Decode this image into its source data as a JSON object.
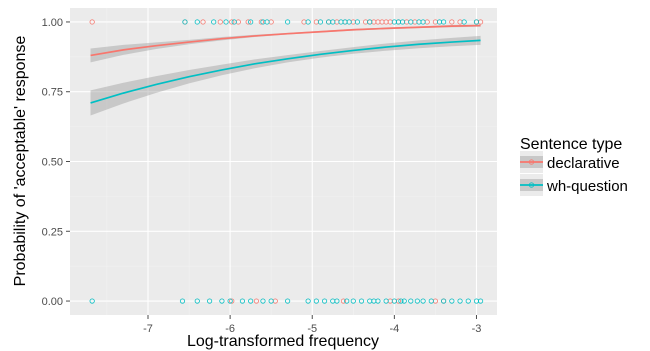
{
  "chart_data": {
    "type": "scatter",
    "xlabel": "Log-transformed frequency",
    "ylabel": "Probability of 'acceptable' response",
    "xlim": [
      -7.95,
      -2.75
    ],
    "ylim": [
      -0.05,
      1.05
    ],
    "x_ticks": [
      -7,
      -6,
      -5,
      -4,
      -3
    ],
    "x_tick_labels": [
      "-7",
      "-6",
      "-5",
      "-4",
      "-3"
    ],
    "y_ticks": [
      0,
      0.25,
      0.5,
      0.75,
      1
    ],
    "y_tick_labels": [
      "0.00",
      "0.25",
      "0.50",
      "0.75",
      "1.00"
    ],
    "grid": true,
    "background": "#ebebeb",
    "legend": {
      "title": "Sentence type",
      "position": "right",
      "entries": [
        "declarative",
        "wh-question"
      ]
    },
    "series": [
      {
        "name": "declarative",
        "color": "#f8766d",
        "fit_x": [
          -7.7,
          -7.3,
          -6.9,
          -6.5,
          -6.1,
          -5.7,
          -5.3,
          -4.9,
          -4.5,
          -4.1,
          -3.7,
          -3.3,
          -2.95
        ],
        "fit_y": [
          0.88,
          0.9,
          0.915,
          0.928,
          0.94,
          0.95,
          0.958,
          0.965,
          0.972,
          0.977,
          0.981,
          0.985,
          0.987
        ],
        "ci_lower": [
          0.855,
          0.882,
          0.903,
          0.92,
          0.934,
          0.946,
          0.955,
          0.962,
          0.969,
          0.974,
          0.978,
          0.981,
          0.983
        ],
        "ci_upper": [
          0.905,
          0.918,
          0.927,
          0.936,
          0.946,
          0.954,
          0.961,
          0.968,
          0.975,
          0.98,
          0.984,
          0.989,
          0.991
        ],
        "points_at_1": [
          -7.68,
          -6.55,
          -6.33,
          -6.12,
          -5.98,
          -5.9,
          -5.78,
          -5.62,
          -5.5,
          -5.1,
          -4.95,
          -4.8,
          -4.7,
          -4.6,
          -4.5,
          -4.35,
          -4.3,
          -4.25,
          -4.2,
          -4.15,
          -4.1,
          -4.05,
          -3.95,
          -3.85,
          -3.75,
          -3.6,
          -3.5,
          -3.3,
          -3.2,
          -3.0,
          -2.95
        ],
        "points_at_0": [
          -5.98,
          -5.68,
          -5.45,
          -4.62,
          -4.05,
          -3.95,
          -3.5,
          -3.4
        ]
      },
      {
        "name": "wh-question",
        "color": "#00bfc4",
        "fit_x": [
          -7.7,
          -7.3,
          -6.9,
          -6.5,
          -6.1,
          -5.7,
          -5.3,
          -4.9,
          -4.5,
          -4.1,
          -3.7,
          -3.3,
          -2.95
        ],
        "fit_y": [
          0.71,
          0.745,
          0.776,
          0.804,
          0.828,
          0.85,
          0.868,
          0.884,
          0.898,
          0.91,
          0.92,
          0.928,
          0.934
        ],
        "ci_lower": [
          0.665,
          0.708,
          0.746,
          0.78,
          0.809,
          0.834,
          0.855,
          0.872,
          0.886,
          0.897,
          0.906,
          0.913,
          0.918
        ],
        "ci_upper": [
          0.755,
          0.782,
          0.806,
          0.828,
          0.847,
          0.866,
          0.881,
          0.896,
          0.91,
          0.923,
          0.934,
          0.943,
          0.95
        ],
        "points_at_1": [
          -6.55,
          -6.4,
          -6.2,
          -6.05,
          -5.95,
          -5.75,
          -5.6,
          -5.55,
          -5.3,
          -5.05,
          -4.9,
          -4.8,
          -4.75,
          -4.65,
          -4.6,
          -4.55,
          -4.45,
          -4.3,
          -4.0,
          -3.95,
          -3.9,
          -3.8,
          -3.7,
          -3.65,
          -3.45,
          -3.4,
          -3.15,
          -3.0
        ],
        "points_at_0": [
          -7.68,
          -6.58,
          -6.4,
          -6.25,
          -6.1,
          -6.0,
          -5.85,
          -5.75,
          -5.6,
          -5.5,
          -5.3,
          -5.05,
          -4.95,
          -4.85,
          -4.75,
          -4.7,
          -4.58,
          -4.5,
          -4.4,
          -4.3,
          -4.25,
          -4.2,
          -4.1,
          -4.0,
          -3.92,
          -3.88,
          -3.8,
          -3.72,
          -3.65,
          -3.55,
          -3.4,
          -3.3,
          -3.2,
          -3.1,
          -3.0,
          -2.95
        ]
      }
    ]
  }
}
